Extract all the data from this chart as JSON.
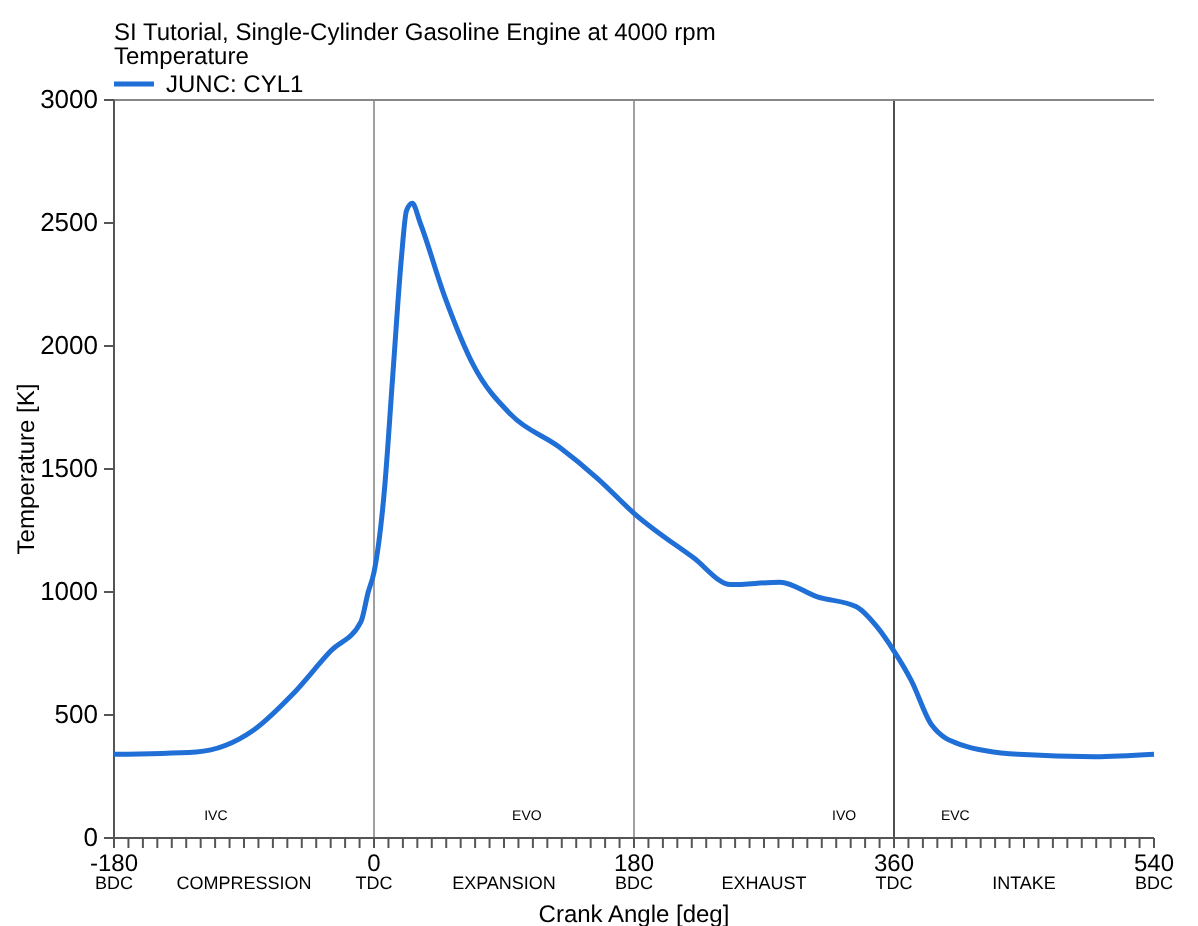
{
  "chart_data": {
    "type": "line",
    "title": "SI Tutorial, Single-Cylinder Gasoline Engine at 4000 rpm",
    "subtitle": "Temperature",
    "xlabel": "Crank Angle  [deg]",
    "ylabel": "Temperature  [K]",
    "x": [
      -180,
      -123,
      -83,
      -57,
      -30,
      -9,
      -4,
      0,
      7,
      13,
      19,
      22.5,
      26.5,
      32,
      49,
      69,
      95,
      128,
      155,
      180,
      221,
      247,
      281,
      307,
      334,
      348,
      360,
      372,
      386,
      406,
      446,
      499,
      540
    ],
    "series": [
      {
        "name": "JUNC: CYL1",
        "color": "#1f6fd6",
        "values": [
          340,
          350,
          440,
          580,
          760,
          880,
          1000,
          1080,
          1400,
          1880,
          2360,
          2550,
          2580,
          2500,
          2200,
          1920,
          1720,
          1590,
          1460,
          1320,
          1140,
          1030,
          1040,
          980,
          940,
          860,
          760,
          640,
          460,
          380,
          340,
          330,
          340
        ]
      }
    ],
    "xlim": [
      -180,
      540
    ],
    "ylim": [
      0,
      3000
    ],
    "xticks": [
      {
        "value": -180,
        "label": "-180\nBDC"
      },
      {
        "value": -170,
        "label": null
      },
      {
        "value": -160,
        "label": null
      },
      {
        "value": -150,
        "label": null
      },
      {
        "value": -140,
        "label": null
      },
      {
        "value": -130,
        "label": null
      },
      {
        "value": -120,
        "label": null
      },
      {
        "value": -110,
        "label": null
      },
      {
        "value": -100,
        "label": null
      },
      {
        "value": -90,
        "label": "\nCOMPRESSION"
      },
      {
        "value": -80,
        "label": null
      },
      {
        "value": -70,
        "label": null
      },
      {
        "value": -60,
        "label": null
      },
      {
        "value": -50,
        "label": null
      },
      {
        "value": -40,
        "label": null
      },
      {
        "value": -30,
        "label": null
      },
      {
        "value": -20,
        "label": null
      },
      {
        "value": -10,
        "label": null
      },
      {
        "value": 0,
        "label": "0\nTDC"
      },
      {
        "value": 10,
        "label": null
      },
      {
        "value": 20,
        "label": null
      },
      {
        "value": 30,
        "label": null
      },
      {
        "value": 40,
        "label": null
      },
      {
        "value": 50,
        "label": null
      },
      {
        "value": 60,
        "label": null
      },
      {
        "value": 70,
        "label": null
      },
      {
        "value": 80,
        "label": null
      },
      {
        "value": 90,
        "label": "\nEXPANSION"
      },
      {
        "value": 100,
        "label": null
      },
      {
        "value": 110,
        "label": null
      },
      {
        "value": 120,
        "label": null
      },
      {
        "value": 130,
        "label": null
      },
      {
        "value": 140,
        "label": null
      },
      {
        "value": 150,
        "label": null
      },
      {
        "value": 160,
        "label": null
      },
      {
        "value": 170,
        "label": null
      },
      {
        "value": 180,
        "label": "180\nBDC"
      },
      {
        "value": 190,
        "label": null
      },
      {
        "value": 200,
        "label": null
      },
      {
        "value": 210,
        "label": null
      },
      {
        "value": 220,
        "label": null
      },
      {
        "value": 230,
        "label": null
      },
      {
        "value": 240,
        "label": null
      },
      {
        "value": 250,
        "label": null
      },
      {
        "value": 260,
        "label": null
      },
      {
        "value": 270,
        "label": "\nEXHAUST"
      },
      {
        "value": 280,
        "label": null
      },
      {
        "value": 290,
        "label": null
      },
      {
        "value": 300,
        "label": null
      },
      {
        "value": 310,
        "label": null
      },
      {
        "value": 320,
        "label": null
      },
      {
        "value": 330,
        "label": null
      },
      {
        "value": 340,
        "label": null
      },
      {
        "value": 350,
        "label": null
      },
      {
        "value": 360,
        "label": "360\nTDC"
      },
      {
        "value": 370,
        "label": null
      },
      {
        "value": 380,
        "label": null
      },
      {
        "value": 390,
        "label": null
      },
      {
        "value": 400,
        "label": null
      },
      {
        "value": 410,
        "label": null
      },
      {
        "value": 420,
        "label": null
      },
      {
        "value": 430,
        "label": null
      },
      {
        "value": 440,
        "label": null
      },
      {
        "value": 450,
        "label": "\nINTAKE"
      },
      {
        "value": 460,
        "label": null
      },
      {
        "value": 470,
        "label": null
      },
      {
        "value": 480,
        "label": null
      },
      {
        "value": 490,
        "label": null
      },
      {
        "value": 500,
        "label": null
      },
      {
        "value": 510,
        "label": null
      },
      {
        "value": 520,
        "label": null
      },
      {
        "value": 530,
        "label": null
      },
      {
        "value": 540,
        "label": "540\nBDC"
      }
    ],
    "yticks": [
      0,
      500,
      1000,
      1500,
      2000,
      2500,
      3000
    ],
    "ref_lines": [
      {
        "axis": "x",
        "value": 0,
        "color": "#a0a0a0"
      },
      {
        "axis": "x",
        "value": 180,
        "color": "#a0a0a0"
      },
      {
        "axis": "x",
        "value": 360,
        "color": "#505050"
      }
    ],
    "annotations": [
      "IVC",
      "EVO",
      "IVO",
      "EVC"
    ],
    "legend": "top left",
    "grid": false,
    "marker": "none",
    "line_style": "solid"
  }
}
